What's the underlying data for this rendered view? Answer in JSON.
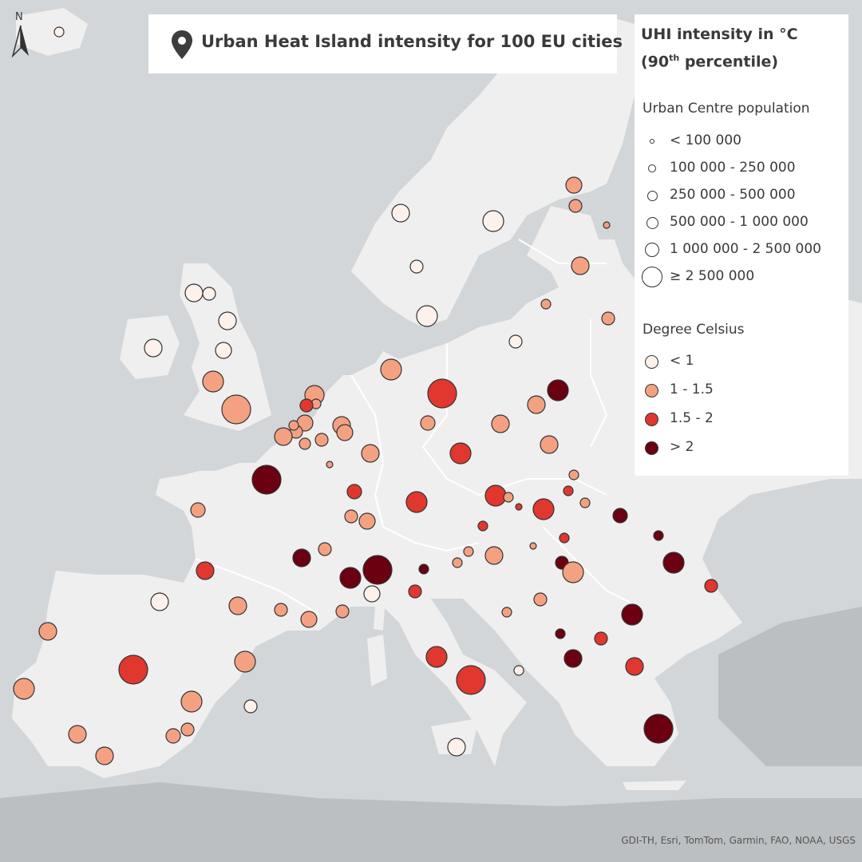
{
  "title": "Urban Heat Island intensity for 100 EU cities",
  "legend": {
    "title_line1": "UHI intensity in °C",
    "title_line2_pre": "(90",
    "title_line2_sup": "th",
    "title_line2_post": " percentile)",
    "population_heading": "Urban Centre population",
    "population_classes": [
      "< 100 000",
      "100 000 - 250 000",
      "250 000 - 500 000",
      "500 000 - 1 000 000",
      "1 000 000 - 2 500 000",
      "≥ 2 500 000"
    ],
    "degree_heading": "Degree Celsius",
    "degree_classes": [
      "< 1",
      "1 - 1.5",
      "1.5 - 2",
      "> 2"
    ]
  },
  "colors": {
    "sea": "#d3d6d8",
    "land": "#efefef",
    "outside_land": "#bcbfc1",
    "class_colors": [
      "#fdf1ec",
      "#f4a182",
      "#e0372e",
      "#6b0011"
    ]
  },
  "north_label": "N",
  "credits": "GDI-TH, Esri, TomTom, Garmin, FAO, NOAA, USGS",
  "icons": {
    "title": "map-pin-icon",
    "north": "north-arrow-icon"
  }
}
